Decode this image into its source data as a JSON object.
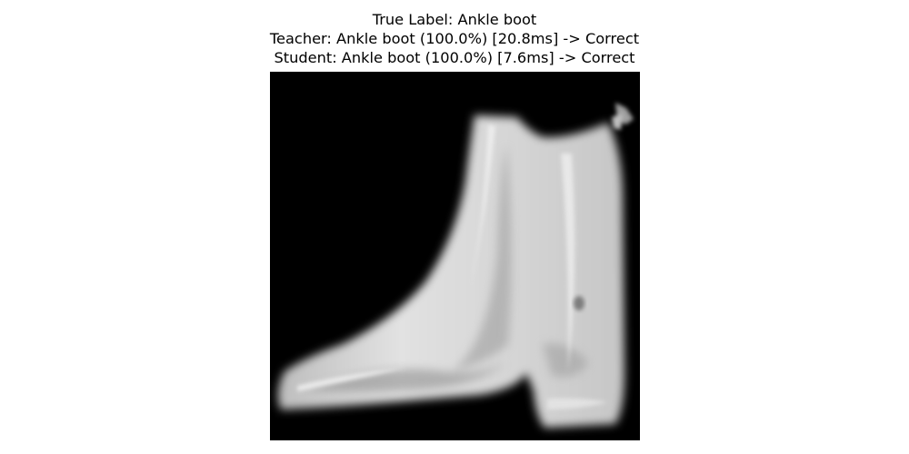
{
  "figure": {
    "title_lines": [
      "True Label: Ankle boot",
      "Teacher: Ankle boot (100.0%) [20.8ms] -> Correct",
      "Student: Ankle boot (100.0%) [7.6ms] -> Correct"
    ],
    "image": {
      "subject": "ankle-boot",
      "colors": {
        "background": "#000000",
        "boot_base": "#cfcfcf",
        "boot_highlight": "#e4e4e4",
        "boot_shadow": "#7a7a7a"
      }
    }
  }
}
